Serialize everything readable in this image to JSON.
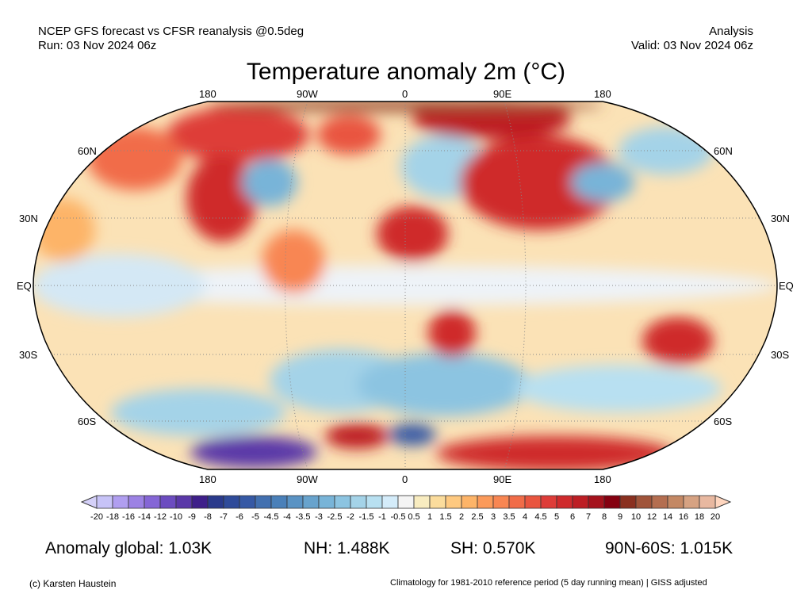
{
  "header": {
    "line1_left": "NCEP GFS forecast vs CFSR reanalysis @0.5deg",
    "line2_left": "Run: 03 Nov 2024 06z",
    "line1_right": "Analysis",
    "line2_right": "Valid: 03 Nov 2024 06z"
  },
  "title": "Temperature anomaly 2m (°C)",
  "map": {
    "lon_labels": [
      "180",
      "90W",
      "0",
      "90E",
      "180"
    ],
    "lat_labels": [
      "60N",
      "30N",
      "EQ",
      "30S",
      "60S"
    ]
  },
  "colorbar": {
    "labels": [
      "-20",
      "-18",
      "-16",
      "-14",
      "-12",
      "-10",
      "-9",
      "-8",
      "-7",
      "-6",
      "-5",
      "-4.5",
      "-4",
      "-3.5",
      "-3",
      "-2.5",
      "-2",
      "-1.5",
      "-1",
      "-0.5",
      "0.5",
      "1",
      "1.5",
      "2",
      "2.5",
      "3",
      "3.5",
      "4",
      "4.5",
      "5",
      "6",
      "7",
      "8",
      "9",
      "10",
      "12",
      "14",
      "16",
      "18",
      "20"
    ],
    "under_color": "#d4d0f8",
    "over_color": "#ffd6bf",
    "colors": [
      "#c7c3f7",
      "#b09ef0",
      "#9c82e4",
      "#8566d6",
      "#6c4cc0",
      "#5a38a8",
      "#3e1f8a",
      "#2a3a8c",
      "#2f4b9a",
      "#3659a5",
      "#4270b0",
      "#4a80b9",
      "#5a93c4",
      "#68a3cd",
      "#78b4d8",
      "#8cc4e1",
      "#a4d3e8",
      "#b8e0f1",
      "#d4ecfa",
      "#f4f4f4",
      "#f8ecc0",
      "#fbdc9c",
      "#fec980",
      "#fdb468",
      "#fb9a5a",
      "#f88652",
      "#f16c48",
      "#e9553f",
      "#de3c38",
      "#cf2a2c",
      "#bd1e24",
      "#a5121c",
      "#850010",
      "#8a3020",
      "#a0543a",
      "#b46e50",
      "#c48864",
      "#d6a282",
      "#e8b8a0"
    ]
  },
  "stats": {
    "global": "Anomaly global: 1.03K",
    "nh": "NH: 1.488K",
    "sh": "SH: 0.570K",
    "band": "90N-60S: 1.015K"
  },
  "footer": {
    "credit": "(c) Karsten Haustein",
    "note": "Climatology for 1981-2010 reference period (5 day running mean) | GISS adjusted"
  }
}
